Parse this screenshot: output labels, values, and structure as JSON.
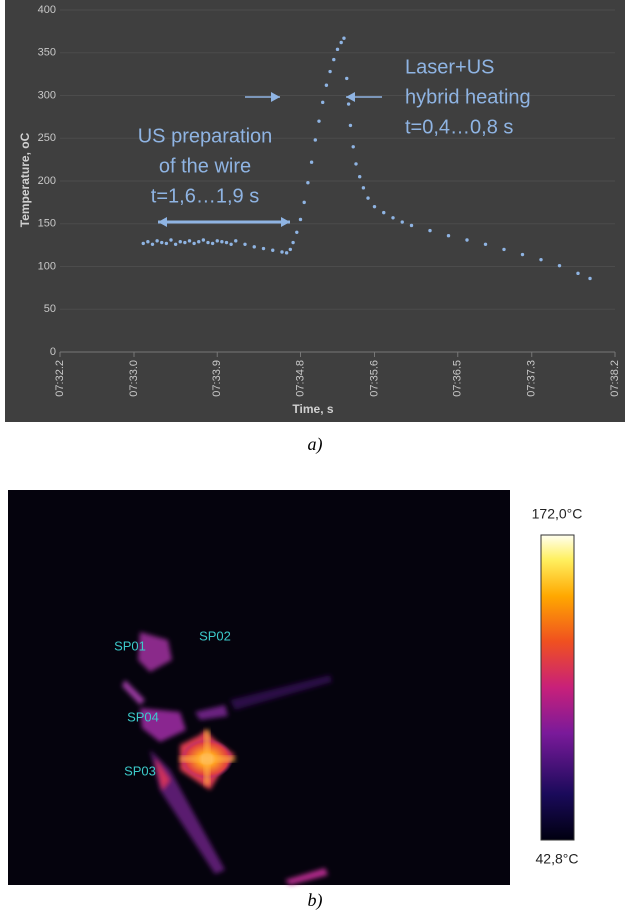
{
  "chart_data": {
    "type": "scatter",
    "color": "#8fb4e3",
    "ylabel": "Temperature, oC",
    "xlabel": "Time, s",
    "ylim": [
      0,
      400
    ],
    "yticks": [
      0,
      50,
      100,
      150,
      200,
      250,
      300,
      350,
      400
    ],
    "xlim": [
      452.2,
      458.2
    ],
    "xticks": [
      {
        "value": 452.2,
        "label": "07:32.2"
      },
      {
        "value": 453.0,
        "label": "07:33.0"
      },
      {
        "value": 453.9,
        "label": "07:33.9"
      },
      {
        "value": 454.8,
        "label": "07:34.8"
      },
      {
        "value": 455.6,
        "label": "07:35.6"
      },
      {
        "value": 456.5,
        "label": "07:36.5"
      },
      {
        "value": 457.3,
        "label": "07:37.3"
      },
      {
        "value": 458.2,
        "label": "07:38.2"
      }
    ],
    "x": [
      453.1,
      453.15,
      453.2,
      453.25,
      453.3,
      453.35,
      453.4,
      453.45,
      453.5,
      453.55,
      453.6,
      453.65,
      453.7,
      453.75,
      453.8,
      453.85,
      453.9,
      453.95,
      454.0,
      454.05,
      454.1,
      454.2,
      454.3,
      454.4,
      454.5,
      454.6,
      454.65,
      454.69,
      454.72,
      454.76,
      454.8,
      454.84,
      454.88,
      454.92,
      454.96,
      455.0,
      455.04,
      455.08,
      455.12,
      455.16,
      455.2,
      455.24,
      455.27,
      455.3,
      455.32,
      455.34,
      455.37,
      455.4,
      455.44,
      455.48,
      455.53,
      455.6,
      455.7,
      455.8,
      455.9,
      456.0,
      456.2,
      456.4,
      456.6,
      456.8,
      457.0,
      457.2,
      457.4,
      457.6,
      457.8,
      457.93
    ],
    "values": [
      127,
      129,
      126,
      130,
      128,
      127,
      131,
      126,
      129,
      128,
      130,
      127,
      129,
      131,
      128,
      127,
      130,
      129,
      128,
      126,
      130,
      126,
      123,
      121,
      119,
      117,
      116,
      120,
      128,
      140,
      155,
      175,
      198,
      222,
      248,
      270,
      292,
      312,
      328,
      342,
      354,
      362,
      367,
      320,
      290,
      265,
      240,
      220,
      205,
      192,
      180,
      170,
      163,
      157,
      152,
      148,
      142,
      136,
      131,
      126,
      120,
      114,
      108,
      101,
      92,
      86
    ],
    "annotations": [
      {
        "lines": [
          "US preparation",
          "of the wire",
          "t=1,6…1,9 s"
        ]
      },
      {
        "lines": [
          "Laser+US",
          "hybrid heating",
          "t=0,4…0,8 s"
        ]
      }
    ]
  },
  "captions": [
    "a)",
    "b)"
  ],
  "thermal_image": {
    "spots": [
      "SP01",
      "SP02",
      "SP04",
      "SP03"
    ],
    "scale_max": "172,0°C",
    "scale_min": "42,8°C"
  }
}
